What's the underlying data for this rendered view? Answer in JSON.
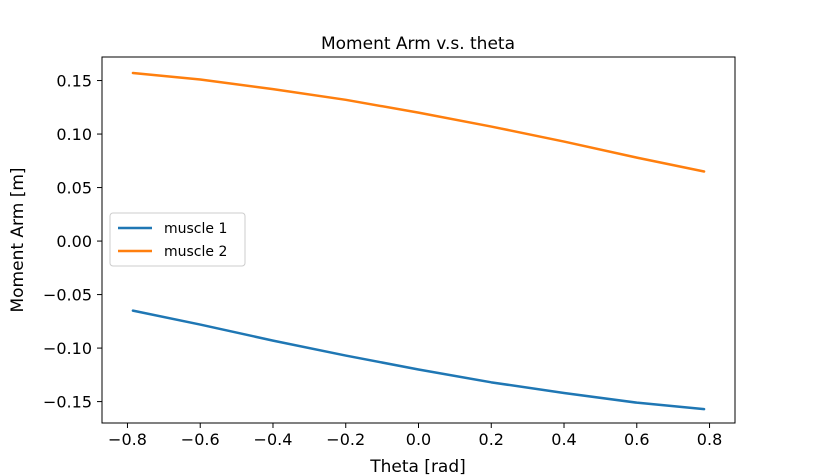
{
  "chart_data": {
    "type": "line",
    "title": "Moment Arm v.s. theta",
    "xlabel": "Theta [rad]",
    "ylabel": "Moment Arm [m]",
    "xlim": [
      -0.87,
      0.87
    ],
    "ylim": [
      -0.17,
      0.172
    ],
    "xticks": [
      -0.8,
      -0.6,
      -0.4,
      -0.2,
      0.0,
      0.2,
      0.4,
      0.6,
      0.8
    ],
    "xtick_labels": [
      "−0.8",
      "−0.6",
      "−0.4",
      "−0.2",
      "0.0",
      "0.2",
      "0.4",
      "0.6",
      "0.8"
    ],
    "yticks": [
      -0.15,
      -0.1,
      -0.05,
      0.0,
      0.05,
      0.1,
      0.15
    ],
    "ytick_labels": [
      "−0.15",
      "−0.10",
      "−0.05",
      "0.00",
      "0.05",
      "0.10",
      "0.15"
    ],
    "grid": false,
    "legend_position": "center-left",
    "x": [
      -0.785,
      -0.6,
      -0.4,
      -0.2,
      0.0,
      0.2,
      0.4,
      0.6,
      0.785
    ],
    "series": [
      {
        "name": "muscle 1",
        "color": "#1f77b4",
        "values": [
          -0.065,
          -0.078,
          -0.093,
          -0.107,
          -0.12,
          -0.132,
          -0.142,
          -0.151,
          -0.157
        ]
      },
      {
        "name": "muscle 2",
        "color": "#ff7f0e",
        "values": [
          0.157,
          0.151,
          0.142,
          0.132,
          0.12,
          0.107,
          0.093,
          0.078,
          0.065
        ]
      }
    ]
  }
}
